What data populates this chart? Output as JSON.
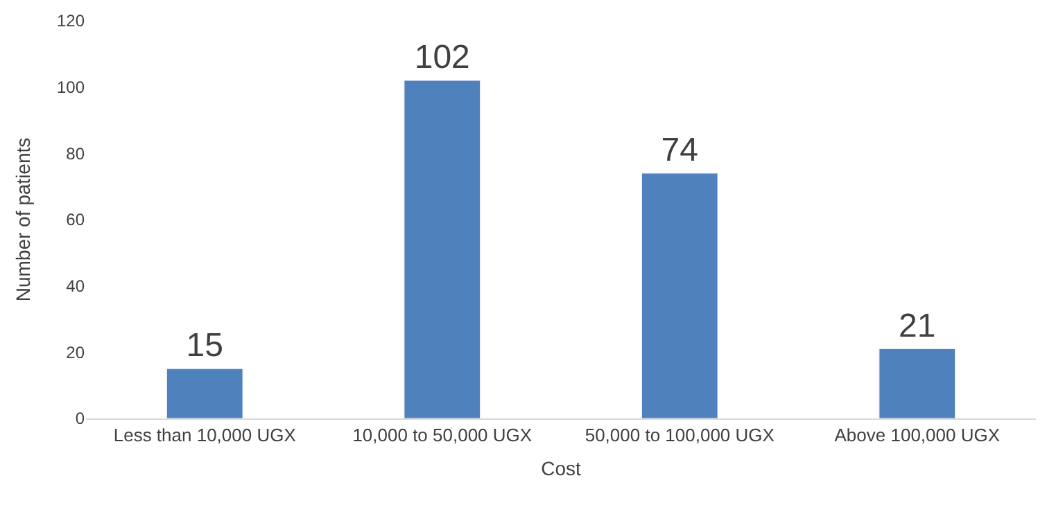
{
  "chart_data": {
    "type": "bar",
    "xlabel": "Cost",
    "ylabel": "Number of patients",
    "categories": [
      "Less than 10,000 UGX",
      "10,000 to 50,000 UGX",
      "50,000 to 100,000 UGX",
      "Above 100,000 UGX"
    ],
    "values": [
      15,
      102,
      74,
      21
    ],
    "color": "#4f81bd",
    "ylim": [
      0,
      120
    ],
    "yticks": [
      0,
      20,
      40,
      60,
      80,
      100,
      120
    ],
    "grid": false,
    "data_labels": true
  }
}
